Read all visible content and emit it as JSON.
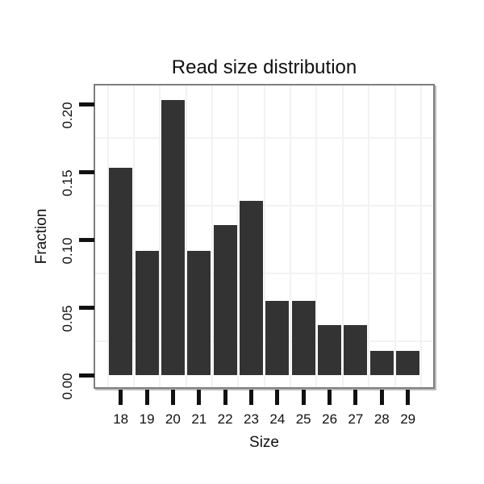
{
  "chart_data": {
    "type": "bar",
    "title": "Read size distribution",
    "xlabel": "Size",
    "ylabel": "Fraction",
    "categories": [
      "18",
      "19",
      "20",
      "21",
      "22",
      "23",
      "24",
      "25",
      "26",
      "27",
      "28",
      "29"
    ],
    "values": [
      0.153,
      0.092,
      0.203,
      0.092,
      0.111,
      0.129,
      0.055,
      0.055,
      0.037,
      0.037,
      0.018,
      0.018
    ],
    "y_ticks": [
      0.0,
      0.05,
      0.1,
      0.15,
      0.2
    ],
    "y_tick_labels": [
      "0.00",
      "0.05",
      "0.10",
      "0.15",
      "0.20"
    ],
    "y_minor_gridlines": [
      0.025,
      0.075,
      0.125,
      0.175
    ],
    "ylim": [
      -0.005,
      0.215
    ],
    "grid": "minor gridlines only, horizontal at quarter offsets and vertical between categories",
    "legend": "none",
    "colors": {
      "bar": "#333333",
      "panel_border": "#7e7e7e",
      "gridline": "#f2f2f2",
      "tick": "#111111",
      "text": "#111111",
      "background": "#ffffff"
    }
  }
}
